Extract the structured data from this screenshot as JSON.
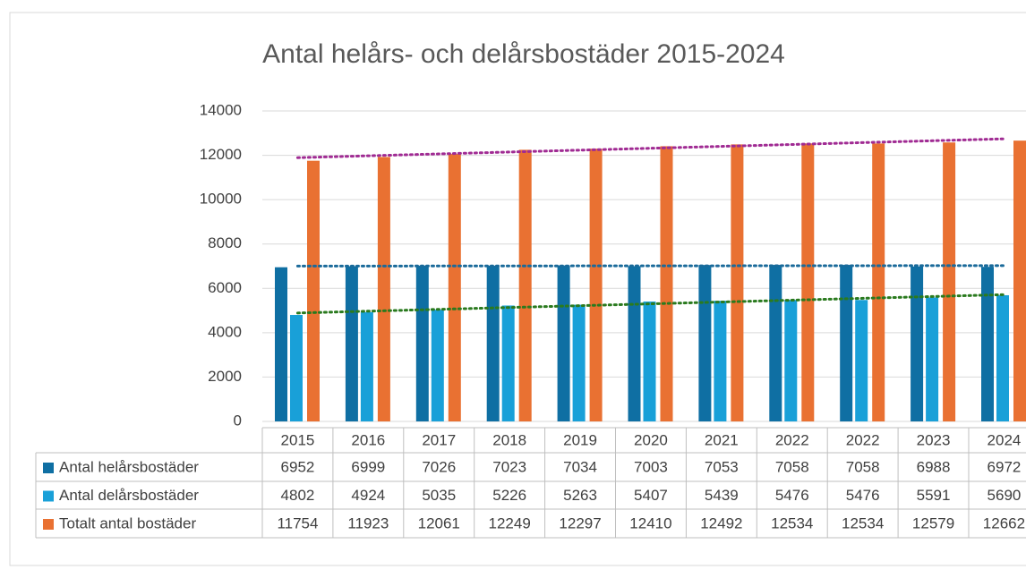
{
  "chart_data": {
    "type": "bar",
    "title": "Antal helårs- och delårsbostäder 2015-2024",
    "categories": [
      "2015",
      "2016",
      "2017",
      "2018",
      "2019",
      "2020",
      "2021",
      "2022",
      "2022",
      "2023",
      "2024"
    ],
    "series": [
      {
        "name": "Antal helårsbostäder",
        "color": "#0f6fa3",
        "trendline_color": "#1a6a9a",
        "values": [
          6952,
          6999,
          7026,
          7023,
          7034,
          7003,
          7053,
          7058,
          7058,
          6988,
          6972
        ]
      },
      {
        "name": "Antal delårsbostäder",
        "color": "#19a0d8",
        "trendline_color": "#2a7a1e",
        "values": [
          4802,
          4924,
          5035,
          5226,
          5263,
          5407,
          5439,
          5476,
          5476,
          5591,
          5690
        ]
      },
      {
        "name": "Totalt antal bostäder",
        "color": "#e97132",
        "trendline_color": "#a02b93",
        "values": [
          11754,
          11923,
          12061,
          12249,
          12297,
          12410,
          12492,
          12534,
          12534,
          12579,
          12662
        ]
      }
    ],
    "ylim": [
      0,
      14000
    ],
    "yticks": [
      0,
      2000,
      4000,
      6000,
      8000,
      10000,
      12000,
      14000
    ],
    "grid": true,
    "trendlines": true,
    "data_table": true
  }
}
